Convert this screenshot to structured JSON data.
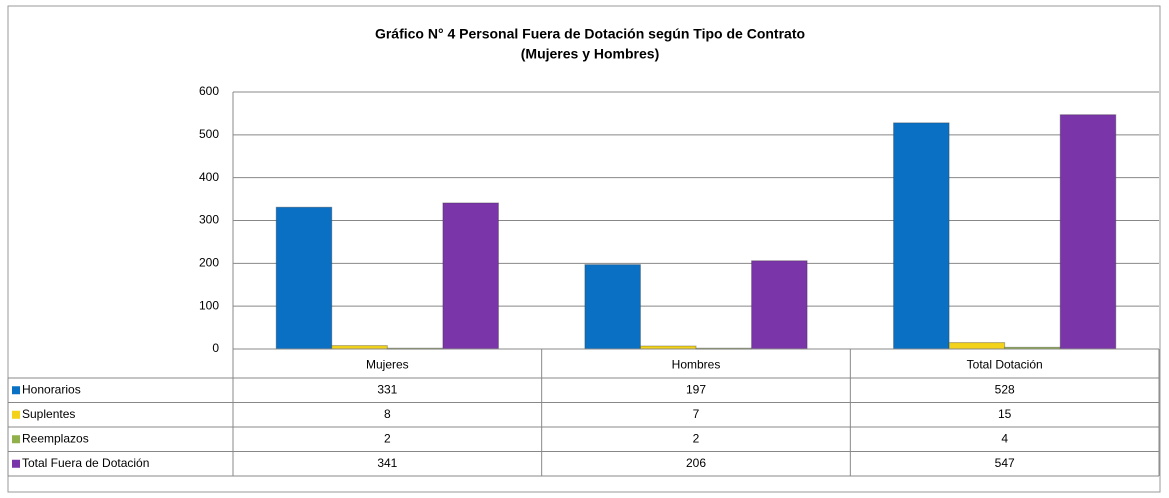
{
  "chart_data": {
    "type": "bar",
    "title": "Gráfico N° 4 Personal Fuera de Dotación según Tipo de Contrato",
    "subtitle": "(Mujeres y Hombres)",
    "categories": [
      "Mujeres",
      "Hombres",
      "Total Dotación"
    ],
    "series": [
      {
        "name": "Honorarios",
        "color": "#0a70c4",
        "values": [
          331,
          197,
          528
        ]
      },
      {
        "name": "Suplentes",
        "color": "#f2d21a",
        "values": [
          8,
          7,
          15
        ]
      },
      {
        "name": "Reemplazos",
        "color": "#8fb04a",
        "values": [
          2,
          2,
          4
        ]
      },
      {
        "name": "Total Fuera de Dotación",
        "color": "#7a35a8",
        "values": [
          341,
          206,
          547
        ]
      }
    ],
    "ylim": [
      0,
      600
    ],
    "yticks": [
      0,
      100,
      200,
      300,
      400,
      500,
      600
    ],
    "grid": true
  }
}
